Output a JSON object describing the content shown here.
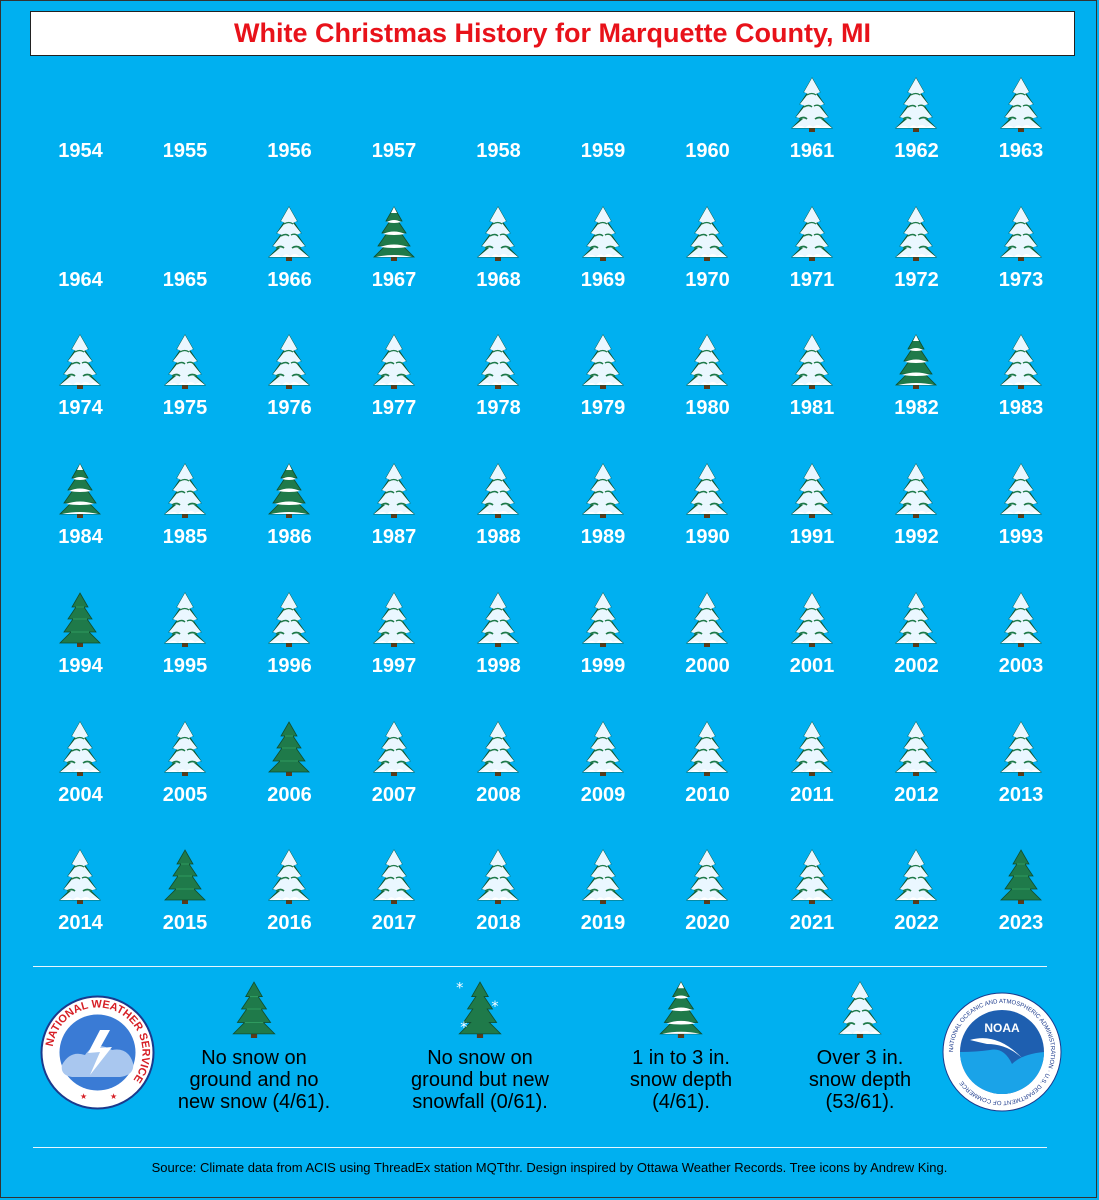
{
  "title": "White Christmas History for Marquette County, MI",
  "colors": {
    "background": "#00B0F0",
    "title": "#E8121A",
    "tree_green": "#1F7A4A",
    "snow": "#FFFFFF"
  },
  "icons": {
    "none": "green-tree-icon",
    "snowfall": "snowflake-tree-icon",
    "light": "lightly-snowy-tree-icon",
    "heavy": "snow-covered-tree-icon"
  },
  "rows": [
    [
      {
        "year": "1954",
        "type": "blank"
      },
      {
        "year": "1955",
        "type": "blank"
      },
      {
        "year": "1956",
        "type": "blank"
      },
      {
        "year": "1957",
        "type": "blank"
      },
      {
        "year": "1958",
        "type": "blank"
      },
      {
        "year": "1959",
        "type": "blank"
      },
      {
        "year": "1960",
        "type": "blank"
      },
      {
        "year": "1961",
        "type": "heavy"
      },
      {
        "year": "1962",
        "type": "heavy"
      },
      {
        "year": "1963",
        "type": "heavy"
      }
    ],
    [
      {
        "year": "1964",
        "type": "blank"
      },
      {
        "year": "1965",
        "type": "blank"
      },
      {
        "year": "1966",
        "type": "heavy"
      },
      {
        "year": "1967",
        "type": "light"
      },
      {
        "year": "1968",
        "type": "heavy"
      },
      {
        "year": "1969",
        "type": "heavy"
      },
      {
        "year": "1970",
        "type": "heavy"
      },
      {
        "year": "1971",
        "type": "heavy"
      },
      {
        "year": "1972",
        "type": "heavy"
      },
      {
        "year": "1973",
        "type": "heavy"
      }
    ],
    [
      {
        "year": "1974",
        "type": "heavy"
      },
      {
        "year": "1975",
        "type": "heavy"
      },
      {
        "year": "1976",
        "type": "heavy"
      },
      {
        "year": "1977",
        "type": "heavy"
      },
      {
        "year": "1978",
        "type": "heavy"
      },
      {
        "year": "1979",
        "type": "heavy"
      },
      {
        "year": "1980",
        "type": "heavy"
      },
      {
        "year": "1981",
        "type": "heavy"
      },
      {
        "year": "1982",
        "type": "light"
      },
      {
        "year": "1983",
        "type": "heavy"
      }
    ],
    [
      {
        "year": "1984",
        "type": "light"
      },
      {
        "year": "1985",
        "type": "heavy"
      },
      {
        "year": "1986",
        "type": "light"
      },
      {
        "year": "1987",
        "type": "heavy"
      },
      {
        "year": "1988",
        "type": "heavy"
      },
      {
        "year": "1989",
        "type": "heavy"
      },
      {
        "year": "1990",
        "type": "heavy"
      },
      {
        "year": "1991",
        "type": "heavy"
      },
      {
        "year": "1992",
        "type": "heavy"
      },
      {
        "year": "1993",
        "type": "heavy"
      }
    ],
    [
      {
        "year": "1994",
        "type": "none"
      },
      {
        "year": "1995",
        "type": "heavy"
      },
      {
        "year": "1996",
        "type": "heavy"
      },
      {
        "year": "1997",
        "type": "heavy"
      },
      {
        "year": "1998",
        "type": "heavy"
      },
      {
        "year": "1999",
        "type": "heavy"
      },
      {
        "year": "2000",
        "type": "heavy"
      },
      {
        "year": "2001",
        "type": "heavy"
      },
      {
        "year": "2002",
        "type": "heavy"
      },
      {
        "year": "2003",
        "type": "heavy"
      }
    ],
    [
      {
        "year": "2004",
        "type": "heavy"
      },
      {
        "year": "2005",
        "type": "heavy"
      },
      {
        "year": "2006",
        "type": "none"
      },
      {
        "year": "2007",
        "type": "heavy"
      },
      {
        "year": "2008",
        "type": "heavy"
      },
      {
        "year": "2009",
        "type": "heavy"
      },
      {
        "year": "2010",
        "type": "heavy"
      },
      {
        "year": "2011",
        "type": "heavy"
      },
      {
        "year": "2012",
        "type": "heavy"
      },
      {
        "year": "2013",
        "type": "heavy"
      }
    ],
    [
      {
        "year": "2014",
        "type": "heavy"
      },
      {
        "year": "2015",
        "type": "none"
      },
      {
        "year": "2016",
        "type": "heavy"
      },
      {
        "year": "2017",
        "type": "heavy"
      },
      {
        "year": "2018",
        "type": "heavy"
      },
      {
        "year": "2019",
        "type": "heavy"
      },
      {
        "year": "2020",
        "type": "heavy"
      },
      {
        "year": "2021",
        "type": "heavy"
      },
      {
        "year": "2022",
        "type": "heavy"
      },
      {
        "year": "2023",
        "type": "none"
      }
    ]
  ],
  "legend": [
    {
      "type": "none",
      "lines": [
        "No snow on",
        "ground and no",
        "new snow (4/61)."
      ]
    },
    {
      "type": "snowfall",
      "lines": [
        "No snow on",
        "ground but new",
        "snowfall (0/61)."
      ]
    },
    {
      "type": "light",
      "lines": [
        "1 in to 3 in.",
        "snow depth",
        "(4/61)."
      ]
    },
    {
      "type": "heavy",
      "lines": [
        "Over 3 in.",
        "snow depth",
        "(53/61)."
      ]
    }
  ],
  "logos": {
    "nws_text": "NATIONAL WEATHER SERVICE",
    "noaa_text": "NOAA",
    "noaa_ring_text": "NATIONAL OCEANIC AND ATMOSPHERIC ADMINISTRATION · U.S. DEPARTMENT OF COMMERCE"
  },
  "source": "Source: Climate data from ACIS using ThreadEx station MQTthr. Design inspired by Ottawa Weather Records. Tree icons by Andrew King."
}
